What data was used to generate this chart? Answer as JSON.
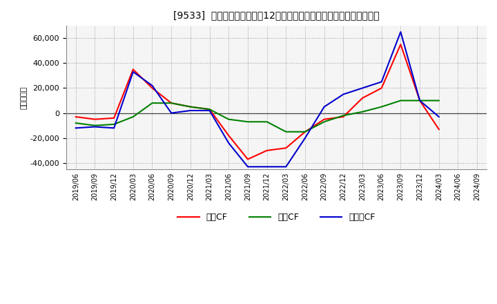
{
  "title": "[9533]  キャッシュフローの12か月移動合計の対前年同期増減額の推移",
  "ylabel": "（百万円）",
  "background_color": "#ffffff",
  "plot_bg_color": "#f5f5f5",
  "grid_color": "#999999",
  "x_labels": [
    "2019/06",
    "2019/09",
    "2019/12",
    "2020/03",
    "2020/06",
    "2020/09",
    "2020/12",
    "2021/03",
    "2021/06",
    "2021/09",
    "2021/12",
    "2022/03",
    "2022/06",
    "2022/09",
    "2022/12",
    "2023/03",
    "2023/06",
    "2023/09",
    "2023/12",
    "2024/03",
    "2024/06",
    "2024/09"
  ],
  "operating_cf": [
    -3000,
    -5000,
    -4000,
    35000,
    20000,
    8000,
    5000,
    3000,
    -18000,
    -37000,
    -30000,
    -28000,
    -15000,
    -5000,
    -3000,
    12000,
    20000,
    55000,
    10000,
    -13000,
    null,
    null
  ],
  "investing_cf": [
    -8000,
    -10000,
    -9000,
    -3000,
    8000,
    8000,
    5000,
    3000,
    -5000,
    -7000,
    -7000,
    -15000,
    -15000,
    -7000,
    -2000,
    1000,
    5000,
    10000,
    10000,
    10000,
    null,
    null
  ],
  "free_cf": [
    -12000,
    -11000,
    -12000,
    33000,
    22000,
    0,
    2000,
    2000,
    -24000,
    -43000,
    -43000,
    -43000,
    -20000,
    5000,
    15000,
    20000,
    25000,
    65000,
    10000,
    -3000,
    null,
    null
  ],
  "ylim": [
    -45000,
    70000
  ],
  "yticks": [
    -40000,
    -20000,
    0,
    20000,
    40000,
    60000
  ],
  "line_colors": {
    "operating": "#ff0000",
    "investing": "#008000",
    "free": "#0000cd"
  },
  "legend_labels": [
    "営業CF",
    "投資CF",
    "フリーCF"
  ]
}
